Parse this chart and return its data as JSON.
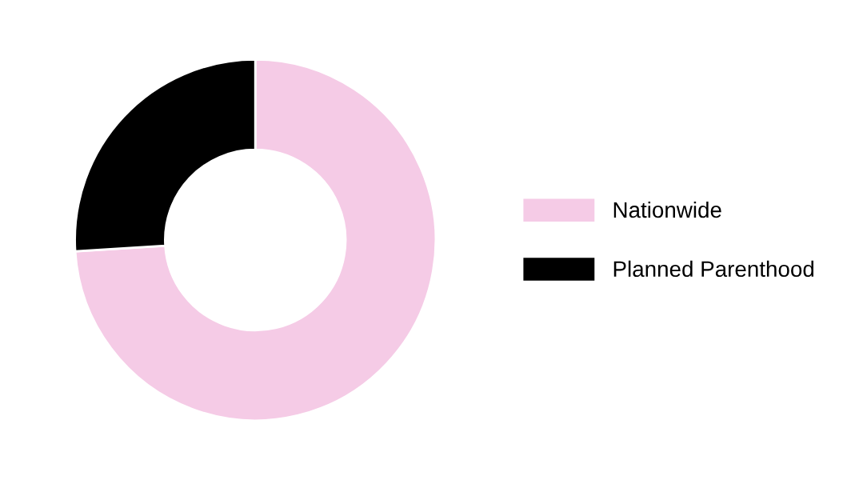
{
  "chart_data": {
    "type": "donut",
    "categories": [
      "Nationwide",
      "Planned Parenthood"
    ],
    "values": [
      74,
      26
    ],
    "colors": [
      "#f5cbe6",
      "#000000"
    ],
    "legend": "right"
  }
}
